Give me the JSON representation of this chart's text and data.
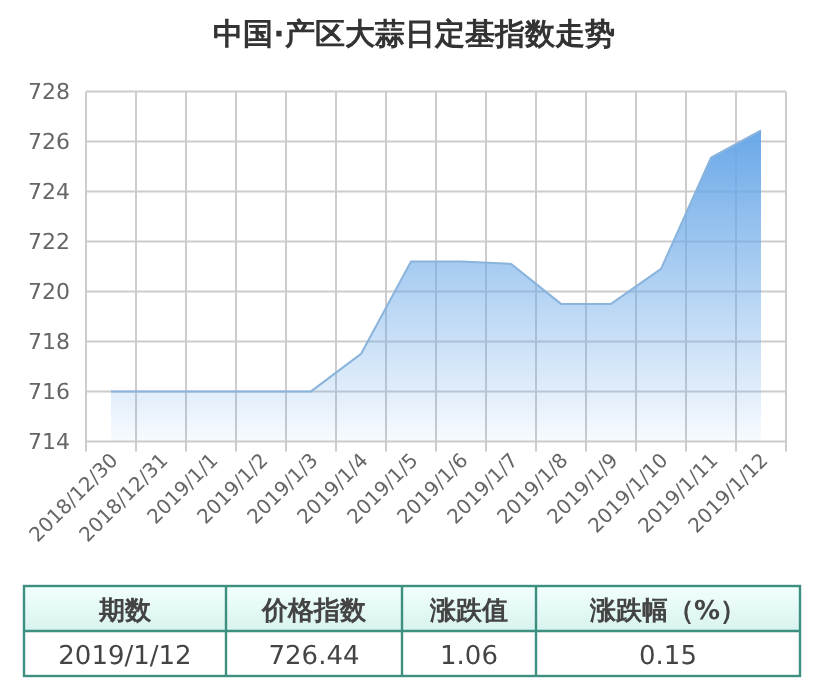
{
  "chart_data": {
    "type": "area",
    "title": "中国·产区大蒜日定基指数走势",
    "categories": [
      "2018/12/30",
      "2018/12/31",
      "2019/1/1",
      "2019/1/2",
      "2019/1/3",
      "2019/1/4",
      "2019/1/5",
      "2019/1/6",
      "2019/1/7",
      "2019/1/8",
      "2019/1/9",
      "2019/1/10",
      "2019/1/11",
      "2019/1/12"
    ],
    "values": [
      716,
      716,
      716,
      716,
      716,
      717.5,
      721.2,
      721.2,
      721.1,
      719.5,
      719.5,
      720.9,
      725.35,
      726.44
    ],
    "color": "#6aa8e8",
    "ylim": [
      714,
      728
    ],
    "yticks": [
      714,
      716,
      718,
      720,
      722,
      724,
      726,
      728
    ],
    "grid": true,
    "annotations": [
      "期数",
      "价格指数",
      "涨跌值",
      "涨跌幅（%）",
      "2019/1/12",
      "726.44",
      "1.06",
      "0.15"
    ]
  }
}
